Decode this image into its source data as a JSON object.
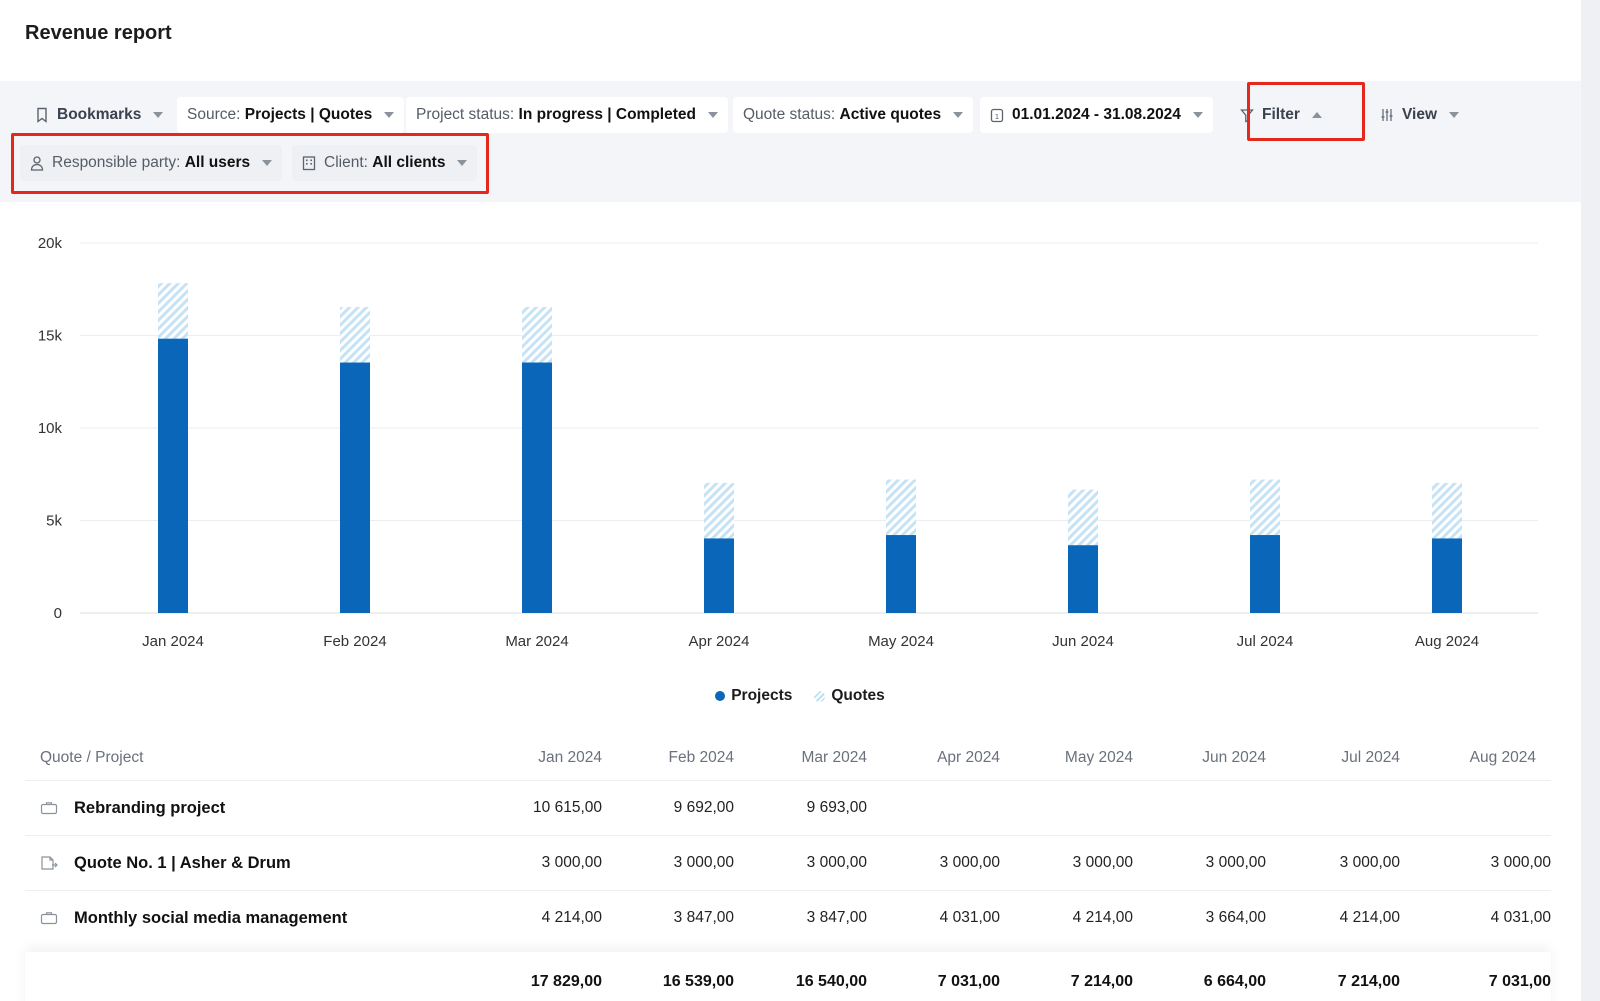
{
  "header": {
    "title": "Revenue report"
  },
  "filters": {
    "bookmarks": "Bookmarks",
    "source_label": "Source:",
    "source_value": "Projects | Quotes",
    "project_status_label": "Project status:",
    "project_status_value": "In progress | Completed",
    "quote_status_label": "Quote status:",
    "quote_status_value": "Active quotes",
    "date_range": "01.01.2024 - 31.08.2024",
    "filter": "Filter",
    "view": "View",
    "responsible_label": "Responsible party:",
    "responsible_value": "All users",
    "client_label": "Client:",
    "client_value": "All clients"
  },
  "colors": {
    "projects": "#0a66b8",
    "quotes": "#bfe0f3",
    "highlight": "#e5281c"
  },
  "chart_data": {
    "type": "bar",
    "stacked": true,
    "categories": [
      "Jan 2024",
      "Feb 2024",
      "Mar 2024",
      "Apr 2024",
      "May 2024",
      "Jun 2024",
      "Jul 2024",
      "Aug 2024"
    ],
    "series": [
      {
        "name": "Projects",
        "values": [
          14829,
          13539,
          13540,
          4031,
          4214,
          3664,
          4214,
          4031
        ]
      },
      {
        "name": "Quotes",
        "values": [
          3000,
          3000,
          3000,
          3000,
          3000,
          3000,
          3000,
          3000
        ]
      }
    ],
    "yticks": [
      "0",
      "5k",
      "10k",
      "15k",
      "20k"
    ],
    "ylim": [
      0,
      20000
    ],
    "grid": true,
    "legend": "bottom-center"
  },
  "table": {
    "headers": [
      "Quote / Project",
      "Jan 2024",
      "Feb 2024",
      "Mar 2024",
      "Apr 2024",
      "May 2024",
      "Jun 2024",
      "Jul 2024",
      "Aug 2024"
    ],
    "rows": [
      {
        "icon": "briefcase-icon",
        "name": "Rebranding project",
        "values": [
          "10 615,00",
          "9 692,00",
          "9 693,00",
          "",
          "",
          "",
          "",
          ""
        ]
      },
      {
        "icon": "quote-document-icon",
        "name": "Quote No. 1 | Asher & Drum",
        "values": [
          "3 000,00",
          "3 000,00",
          "3 000,00",
          "3 000,00",
          "3 000,00",
          "3 000,00",
          "3 000,00",
          "3 000,00"
        ]
      },
      {
        "icon": "briefcase-icon",
        "name": "Monthly social media management",
        "values": [
          "4 214,00",
          "3 847,00",
          "3 847,00",
          "4 031,00",
          "4 214,00",
          "3 664,00",
          "4 214,00",
          "4 031,00"
        ]
      }
    ],
    "totals": [
      "17 829,00",
      "16 539,00",
      "16 540,00",
      "7 031,00",
      "7 214,00",
      "6 664,00",
      "7 214,00",
      "7 031,00"
    ]
  }
}
